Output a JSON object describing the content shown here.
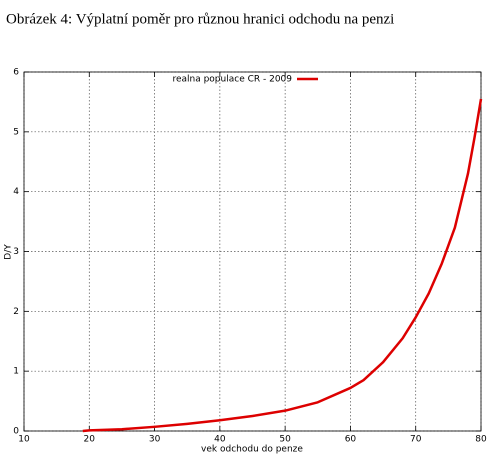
{
  "chart_data": {
    "type": "line",
    "title": "Obrázek 4: Výplatní poměr pro různou hranici odchodu na penzi",
    "xlabel": "vek odchodu do penze",
    "ylabel": "D/Y",
    "x": [
      19,
      20,
      25,
      30,
      35,
      40,
      45,
      50,
      55,
      60,
      62,
      65,
      68,
      70,
      72,
      74,
      76,
      78,
      79,
      80
    ],
    "series": [
      {
        "name": "realna populace CR - 2009",
        "color": "#dd0000",
        "values": [
          0,
          0.01,
          0.03,
          0.07,
          0.12,
          0.18,
          0.25,
          0.34,
          0.48,
          0.72,
          0.85,
          1.15,
          1.55,
          1.9,
          2.3,
          2.8,
          3.4,
          4.3,
          4.9,
          5.55
        ]
      }
    ],
    "xlim": [
      10,
      80
    ],
    "xticks": [
      10,
      20,
      30,
      40,
      50,
      60,
      70,
      80
    ],
    "ylim": [
      0,
      6
    ],
    "yticks": [
      0,
      1,
      2,
      3,
      4,
      5,
      6
    ],
    "grid": true,
    "legend": "top"
  }
}
